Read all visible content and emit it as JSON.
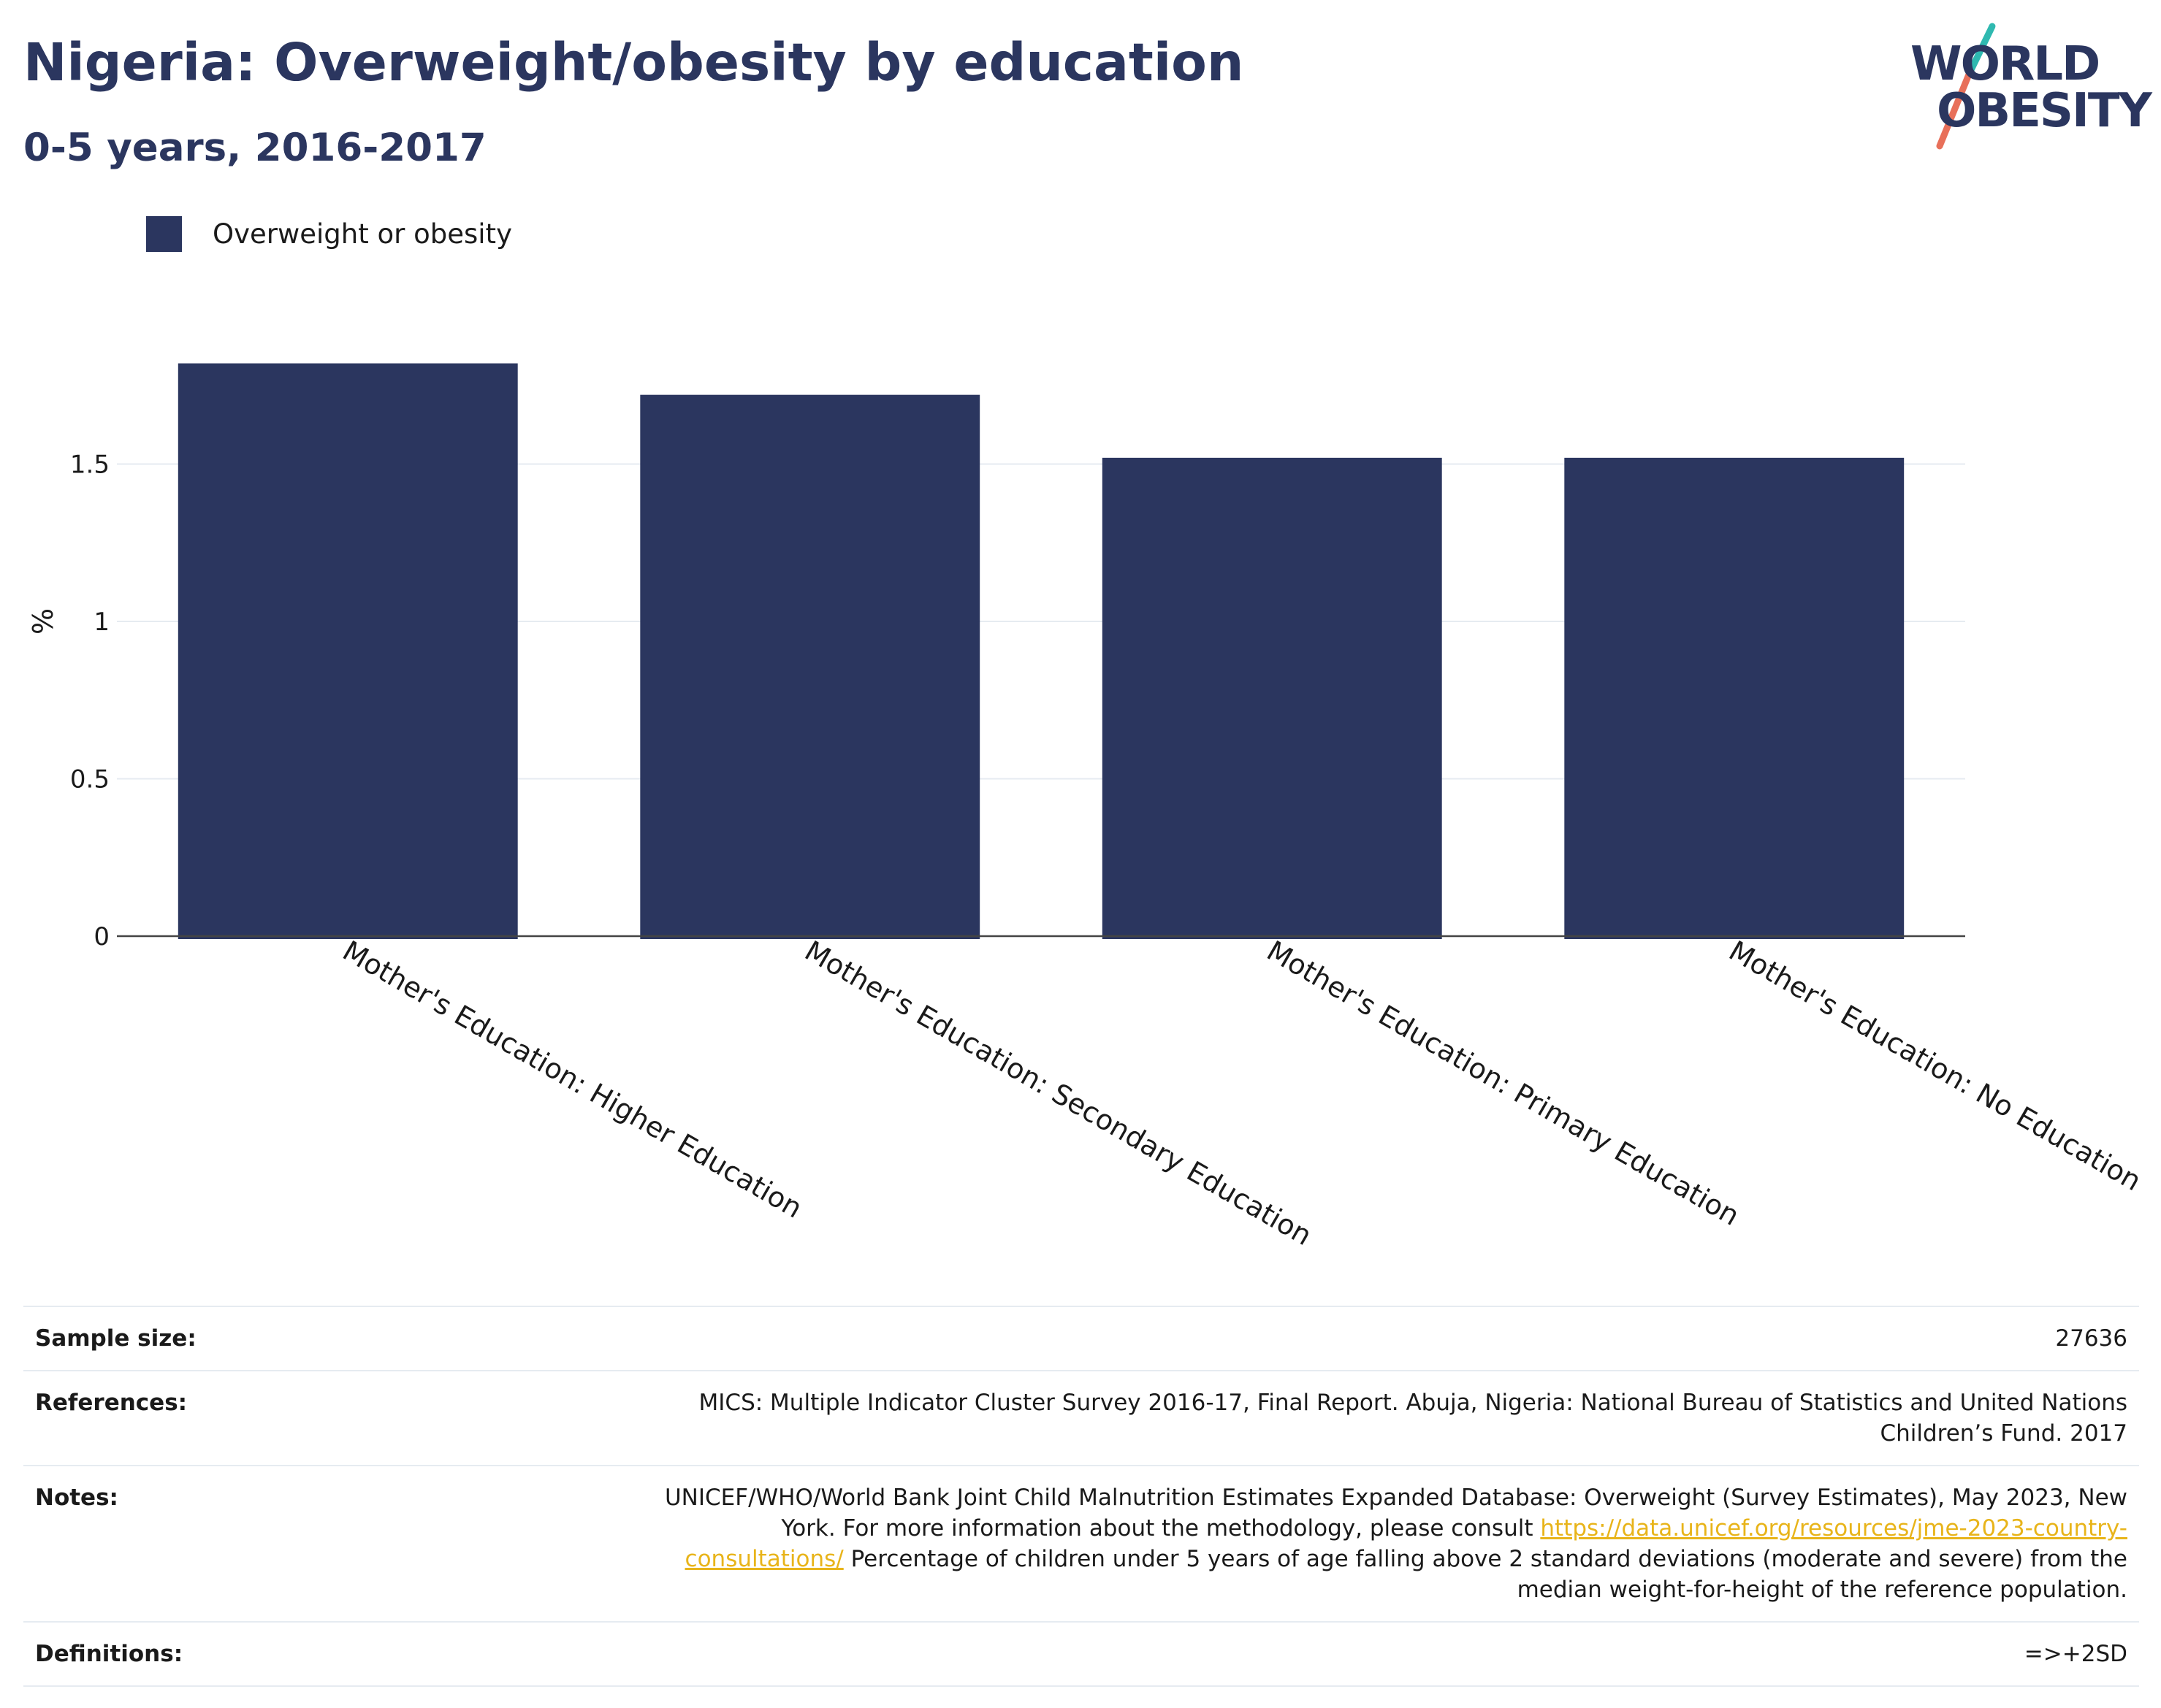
{
  "header": {
    "title": "Nigeria: Overweight/obesity by education",
    "subtitle": "0-5 years, 2016-2017"
  },
  "logo": {
    "line1": "WORLD",
    "line2": "OBESITY",
    "text_color": "#2b365f",
    "slash_color_top": "#2fb9b0",
    "slash_color_bottom": "#e8705a"
  },
  "legend": {
    "label": "Overweight or obesity",
    "color": "#2b365f"
  },
  "chart_data": {
    "type": "bar",
    "categories": [
      "Mother's Education: Higher Education",
      "Mother's Education: Secondary Education",
      "Mother's Education: Primary Education",
      "Mother's Education: No Education"
    ],
    "series": [
      {
        "name": "Overweight or obesity",
        "values": [
          1.82,
          1.72,
          1.52,
          1.52
        ]
      }
    ],
    "ylabel": "%",
    "ylim": [
      0,
      2.0
    ],
    "yticks": [
      0,
      0.5,
      1,
      1.5
    ],
    "ytick_labels": [
      "0",
      "0.5",
      "1",
      "1.5"
    ],
    "grid": true,
    "legend_position": "top-left",
    "bar_color": "#2b365f"
  },
  "info": {
    "rows": [
      {
        "label": "Sample size:",
        "value": "27636"
      },
      {
        "label": "References:",
        "value": "MICS: Multiple Indicator Cluster Survey 2016-17, Final Report. Abuja, Nigeria: National Bureau of Statistics and United Nations Children’s Fund. 2017"
      },
      {
        "label": "Notes:",
        "value_before": "UNICEF/WHO/World Bank Joint Child Malnutrition Estimates Expanded Database: Overweight (Survey Estimates), May 2023, New York. For more information about the methodology, please consult ",
        "link": "https://data.unicef.org/resources/jme-2023-country-consultations/",
        "value_after": " Percentage of children under 5 years of age falling above 2 standard deviations (moderate and severe) from the median weight-for-height of the reference population."
      },
      {
        "label": "Definitions:",
        "value": "=>+2SD"
      }
    ]
  }
}
